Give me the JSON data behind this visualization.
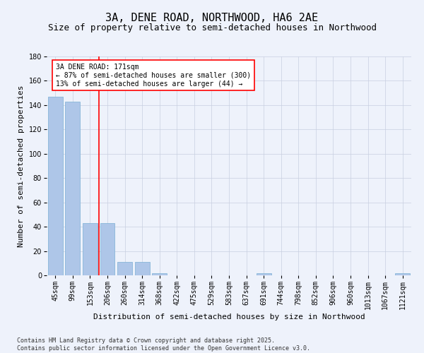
{
  "title": "3A, DENE ROAD, NORTHWOOD, HA6 2AE",
  "subtitle": "Size of property relative to semi-detached houses in Northwood",
  "xlabel": "Distribution of semi-detached houses by size in Northwood",
  "ylabel": "Number of semi-detached properties",
  "categories": [
    "45sqm",
    "99sqm",
    "153sqm",
    "206sqm",
    "260sqm",
    "314sqm",
    "368sqm",
    "422sqm",
    "475sqm",
    "529sqm",
    "583sqm",
    "637sqm",
    "691sqm",
    "744sqm",
    "798sqm",
    "852sqm",
    "906sqm",
    "960sqm",
    "1013sqm",
    "1067sqm",
    "1121sqm"
  ],
  "values": [
    147,
    143,
    43,
    43,
    11,
    11,
    2,
    0,
    0,
    0,
    0,
    0,
    2,
    0,
    0,
    0,
    0,
    0,
    0,
    0,
    2
  ],
  "bar_color": "#aec6e8",
  "bar_edge_color": "#7aafd4",
  "ylim": [
    0,
    180
  ],
  "yticks": [
    0,
    20,
    40,
    60,
    80,
    100,
    120,
    140,
    160,
    180
  ],
  "red_line_x": 2.5,
  "annotation_line1": "3A DENE ROAD: 171sqm",
  "annotation_line2": "← 87% of semi-detached houses are smaller (300)",
  "annotation_line3": "13% of semi-detached houses are larger (44) →",
  "footer_text": "Contains HM Land Registry data © Crown copyright and database right 2025.\nContains public sector information licensed under the Open Government Licence v3.0.",
  "background_color": "#eef2fb",
  "grid_color": "#c8cfe0",
  "title_fontsize": 11,
  "subtitle_fontsize": 9,
  "tick_fontsize": 7,
  "ylabel_fontsize": 8,
  "xlabel_fontsize": 8,
  "annotation_fontsize": 7,
  "footer_fontsize": 6
}
